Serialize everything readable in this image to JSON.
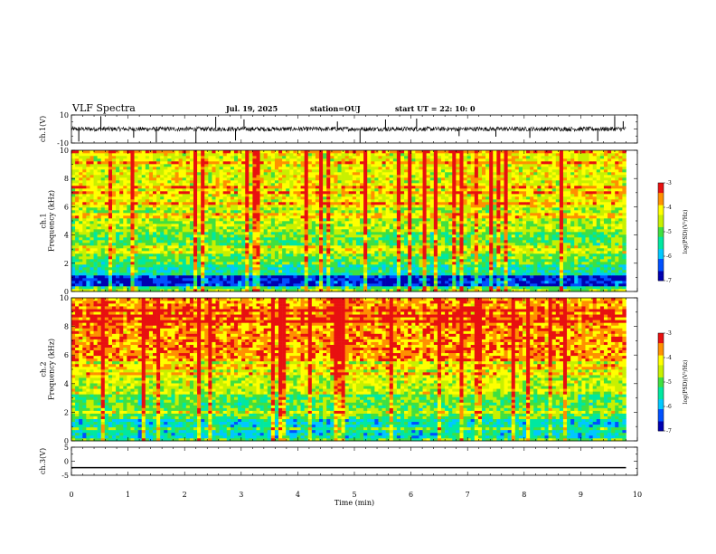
{
  "header": {
    "title": "VLF Spectra",
    "date": "Jul. 19, 2025",
    "station": "station=OUJ",
    "start": "start UT =  22: 10: 0"
  },
  "chart_data": [
    {
      "type": "line",
      "panel": "ch1-waveform",
      "ylabel": "ch.1(V)",
      "ylim": [
        -10,
        10
      ],
      "yticks": [
        "10",
        "-10"
      ],
      "xlim": [
        0,
        10
      ],
      "baseline": 0,
      "spike_times_min": [
        0.13,
        0.52,
        1.1,
        1.5,
        2.2,
        2.55,
        2.9,
        3.05,
        4.7,
        5.1,
        5.55,
        6.1,
        6.85,
        7.5,
        8.1,
        9.3,
        9.6,
        9.75
      ]
    },
    {
      "type": "heatmap",
      "panel": "ch1-spectrogram",
      "ylabel": "ch.1\nFrequency (kHz)",
      "xlim": [
        0,
        10
      ],
      "ylim": [
        0,
        10
      ],
      "yticks": [
        "0",
        "2",
        "4",
        "6",
        "8",
        "10"
      ],
      "data_end_min": 9.8,
      "colorbar": {
        "label": "log(PSD)(V²/Hz)",
        "range": [
          -7,
          -3
        ],
        "ticks": [
          "-3",
          "-4",
          "-5",
          "-6",
          "-7"
        ]
      },
      "profile_low_to_high_khz": [
        {
          "f0": 0,
          "f1": 0.4,
          "level": -5.2
        },
        {
          "f0": 0.4,
          "f1": 1.2,
          "level": -6.6
        },
        {
          "f0": 1.2,
          "f1": 2.0,
          "level": -5.4
        },
        {
          "f0": 2.0,
          "f1": 4.2,
          "level": -5.0
        },
        {
          "f0": 4.2,
          "f1": 6.0,
          "level": -4.6
        },
        {
          "f0": 6.0,
          "f1": 10,
          "level": -4.3
        }
      ]
    },
    {
      "type": "heatmap",
      "panel": "ch2-spectrogram",
      "ylabel": "ch.2\nFrequency (kHz)",
      "xlim": [
        0,
        10
      ],
      "ylim": [
        0,
        10
      ],
      "yticks": [
        "0",
        "2",
        "4",
        "6",
        "8",
        "10"
      ],
      "data_end_min": 9.8,
      "colorbar": {
        "label": "log(PSD)(V²/Hz)",
        "range": [
          -7,
          -3
        ],
        "ticks": [
          "-3",
          "-4",
          "-5",
          "-6",
          "-7"
        ]
      },
      "profile_low_to_high_khz": [
        {
          "f0": 0,
          "f1": 1.5,
          "level": -5.6
        },
        {
          "f0": 1.5,
          "f1": 3.5,
          "level": -5.0
        },
        {
          "f0": 3.5,
          "f1": 5.5,
          "level": -4.5
        },
        {
          "f0": 5.5,
          "f1": 10,
          "level": -3.7
        }
      ]
    },
    {
      "type": "line",
      "panel": "ch3-waveform",
      "ylabel": "ch.3(V)",
      "ylim": [
        -5,
        5
      ],
      "yticks": [
        "5",
        "0",
        "-5"
      ],
      "xlim": [
        0,
        10
      ],
      "constant_value": -2.3
    }
  ],
  "xaxis": {
    "label": "Time (min)",
    "ticks": [
      "0",
      "1",
      "2",
      "3",
      "4",
      "5",
      "6",
      "7",
      "8",
      "9",
      "10"
    ]
  },
  "colors": {
    "colormap": [
      "#0000b0",
      "#0050ff",
      "#00c8ff",
      "#00e8a0",
      "#40e040",
      "#c8f000",
      "#ffff00",
      "#ff9000",
      "#e81010"
    ]
  }
}
